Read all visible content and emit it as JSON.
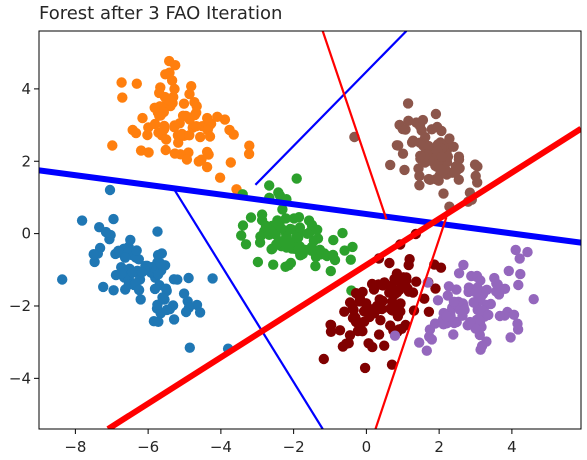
{
  "chart_data": {
    "type": "scatter",
    "title": "Forest after 3 FAO Iteration",
    "xlabel": "",
    "ylabel": "",
    "xlim": [
      -9.0,
      5.9
    ],
    "ylim": [
      -5.4,
      5.6
    ],
    "xticks": [
      -8,
      -6,
      -4,
      -2,
      0,
      2,
      4
    ],
    "yticks": [
      -4,
      -2,
      0,
      2,
      4
    ],
    "xtick_labels": [
      "−8",
      "−6",
      "−4",
      "−2",
      "0",
      "2",
      "4"
    ],
    "ytick_labels": [
      "−4",
      "−2",
      "0",
      "2",
      "4"
    ],
    "grid": false,
    "legend": "none",
    "series": [
      {
        "color": "#ff7f0e",
        "center": [
          -5.1,
          3.0
        ],
        "spread": [
          0.85,
          0.55
        ],
        "angle_deg": -36,
        "count": 85,
        "seed": 11
      },
      {
        "color": "#8c564b",
        "center": [
          1.8,
          2.2
        ],
        "spread": [
          0.75,
          0.45
        ],
        "angle_deg": -40,
        "count": 80,
        "seed": 23
      },
      {
        "color": "#2ca02c",
        "center": [
          -1.9,
          -0.1
        ],
        "spread": [
          0.7,
          0.45
        ],
        "angle_deg": -30,
        "count": 90,
        "seed": 37
      },
      {
        "color": "#1f77b4",
        "center": [
          -6.0,
          -1.2
        ],
        "spread": [
          0.9,
          0.45
        ],
        "angle_deg": -38,
        "count": 90,
        "seed": 41
      },
      {
        "color": "#800000",
        "center": [
          0.4,
          -2.1
        ],
        "spread": [
          0.95,
          0.45
        ],
        "angle_deg": 45,
        "count": 95,
        "seed": 53
      },
      {
        "color": "#9467bd",
        "center": [
          2.9,
          -2.0
        ],
        "spread": [
          0.8,
          0.5
        ],
        "angle_deg": 40,
        "count": 90,
        "seed": 67
      }
    ],
    "lines": [
      {
        "color": "#0000ff",
        "weight": "thick",
        "points": [
          [
            -9.0,
            1.75
          ],
          [
            5.9,
            -0.25
          ]
        ]
      },
      {
        "color": "#0000ff",
        "weight": "thin",
        "points": [
          [
            -3.05,
            1.35
          ],
          [
            1.1,
            5.6
          ]
        ]
      },
      {
        "color": "#0000ff",
        "weight": "thin",
        "points": [
          [
            -5.3,
            1.25
          ],
          [
            -1.2,
            -5.4
          ]
        ]
      },
      {
        "color": "#ff0000",
        "weight": "thick",
        "points": [
          [
            -7.1,
            -5.4
          ],
          [
            5.9,
            2.9
          ]
        ]
      },
      {
        "color": "#ff0000",
        "weight": "thin",
        "points": [
          [
            -1.2,
            5.6
          ],
          [
            0.55,
            0.4
          ]
        ]
      },
      {
        "color": "#ff0000",
        "weight": "thin",
        "points": [
          [
            2.2,
            0.45
          ],
          [
            0.25,
            -5.4
          ]
        ]
      }
    ]
  }
}
